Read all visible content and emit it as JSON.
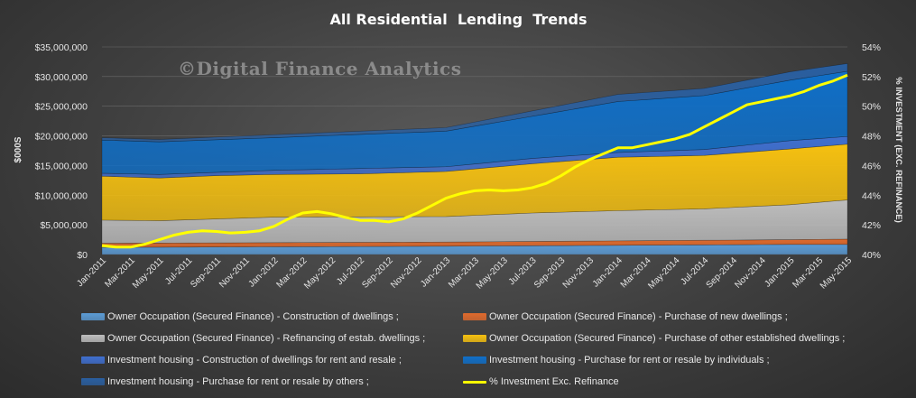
{
  "chart_data": {
    "type": "area",
    "title": "All Residential  Lending  Trends",
    "watermark": "©Digital Finance Analytics",
    "ylabel": "$000S",
    "y2label": "% INVESTMENT (EXC. REFINANCE)",
    "ylim": [
      0,
      35000000
    ],
    "y2lim": [
      40,
      54
    ],
    "yticks": [
      "$0",
      "$5,000,000",
      "$10,000,000",
      "$15,000,000",
      "$20,000,000",
      "$25,000,000",
      "$30,000,000",
      "$35,000,000"
    ],
    "y2ticks": [
      "40%",
      "42%",
      "44%",
      "46%",
      "48%",
      "50%",
      "52%",
      "54%"
    ],
    "x": [
      "Jan-2011",
      "Feb-2011",
      "Mar-2011",
      "Apr-2011",
      "May-2011",
      "Jun-2011",
      "Jul-2011",
      "Aug-2011",
      "Sep-2011",
      "Oct-2011",
      "Nov-2011",
      "Dec-2011",
      "Jan-2012",
      "Feb-2012",
      "Mar-2012",
      "Apr-2012",
      "May-2012",
      "Jun-2012",
      "Jul-2012",
      "Aug-2012",
      "Sep-2012",
      "Oct-2012",
      "Nov-2012",
      "Dec-2012",
      "Jan-2013",
      "Feb-2013",
      "Mar-2013",
      "Apr-2013",
      "May-2013",
      "Jun-2013",
      "Jul-2013",
      "Aug-2013",
      "Sep-2013",
      "Oct-2013",
      "Nov-2013",
      "Dec-2013",
      "Jan-2014",
      "Feb-2014",
      "Mar-2014",
      "Apr-2014",
      "May-2014",
      "Jun-2014",
      "Jul-2014",
      "Aug-2014",
      "Sep-2014",
      "Oct-2014",
      "Nov-2014",
      "Dec-2014",
      "Jan-2015",
      "Feb-2015",
      "Mar-2015",
      "Apr-2015",
      "May-2015"
    ],
    "xtick_labels": [
      "Jan-2011",
      "Mar-2011",
      "May-2011",
      "Jul-2011",
      "Sep-2011",
      "Nov-2011",
      "Jan-2012",
      "Mar-2012",
      "May-2012",
      "Jul-2012",
      "Sep-2012",
      "Nov-2012",
      "Jan-2013",
      "Mar-2013",
      "May-2013",
      "Jul-2013",
      "Sep-2013",
      "Nov-2013",
      "Jan-2014",
      "Mar-2014",
      "May-2014",
      "Jul-2014",
      "Sep-2014",
      "Nov-2014",
      "Jan-2015",
      "Mar-2015",
      "May-2015"
    ],
    "stack_anchors": {
      "cum1_construction": [
        [
          0,
          1200000
        ],
        [
          12,
          1300000
        ],
        [
          24,
          1400000
        ],
        [
          36,
          1550000
        ],
        [
          48,
          1700000
        ],
        [
          52,
          1700000
        ]
      ],
      "cum2_new_dwellings": [
        [
          0,
          1900000
        ],
        [
          12,
          2000000
        ],
        [
          24,
          2100000
        ],
        [
          36,
          2300000
        ],
        [
          48,
          2500000
        ],
        [
          52,
          2600000
        ]
      ],
      "cum3_refinancing": [
        [
          0,
          5800000
        ],
        [
          4,
          5700000
        ],
        [
          12,
          6300000
        ],
        [
          24,
          6400000
        ],
        [
          30,
          7000000
        ],
        [
          36,
          7400000
        ],
        [
          42,
          7700000
        ],
        [
          48,
          8400000
        ],
        [
          52,
          9200000
        ]
      ],
      "cum4_other_established": [
        [
          0,
          13200000
        ],
        [
          4,
          12900000
        ],
        [
          8,
          13300000
        ],
        [
          12,
          13500000
        ],
        [
          18,
          13600000
        ],
        [
          24,
          14000000
        ],
        [
          30,
          15300000
        ],
        [
          36,
          16400000
        ],
        [
          42,
          16700000
        ],
        [
          48,
          17800000
        ],
        [
          52,
          18600000
        ]
      ],
      "cum5_inv_construction": [
        [
          0,
          13700000
        ],
        [
          4,
          13500000
        ],
        [
          12,
          14200000
        ],
        [
          24,
          14800000
        ],
        [
          30,
          16200000
        ],
        [
          36,
          17200000
        ],
        [
          42,
          17700000
        ],
        [
          48,
          19200000
        ],
        [
          52,
          19900000
        ]
      ],
      "cum6_inv_individuals": [
        [
          0,
          19300000
        ],
        [
          4,
          19000000
        ],
        [
          12,
          19700000
        ],
        [
          24,
          20800000
        ],
        [
          30,
          23300000
        ],
        [
          36,
          25800000
        ],
        [
          42,
          26800000
        ],
        [
          48,
          29400000
        ],
        [
          52,
          30900000
        ]
      ],
      "cum7_inv_others": [
        [
          0,
          19700000
        ],
        [
          4,
          19400000
        ],
        [
          12,
          20200000
        ],
        [
          24,
          21400000
        ],
        [
          30,
          24200000
        ],
        [
          36,
          27000000
        ],
        [
          42,
          28000000
        ],
        [
          48,
          30800000
        ],
        [
          52,
          32200000
        ]
      ]
    },
    "investment_pct": [
      [
        0,
        40.6
      ],
      [
        1,
        40.5
      ],
      [
        2,
        40.5
      ],
      [
        3,
        40.7
      ],
      [
        4,
        41.0
      ],
      [
        5,
        41.3
      ],
      [
        6,
        41.5
      ],
      [
        7,
        41.6
      ],
      [
        8,
        41.55
      ],
      [
        9,
        41.45
      ],
      [
        10,
        41.5
      ],
      [
        11,
        41.6
      ],
      [
        12,
        41.9
      ],
      [
        13,
        42.4
      ],
      [
        14,
        42.8
      ],
      [
        15,
        42.9
      ],
      [
        16,
        42.75
      ],
      [
        17,
        42.5
      ],
      [
        18,
        42.3
      ],
      [
        19,
        42.3
      ],
      [
        20,
        42.2
      ],
      [
        21,
        42.4
      ],
      [
        22,
        42.8
      ],
      [
        23,
        43.3
      ],
      [
        24,
        43.8
      ],
      [
        25,
        44.1
      ],
      [
        26,
        44.3
      ],
      [
        27,
        44.35
      ],
      [
        28,
        44.3
      ],
      [
        29,
        44.35
      ],
      [
        30,
        44.5
      ],
      [
        31,
        44.8
      ],
      [
        32,
        45.3
      ],
      [
        33,
        45.9
      ],
      [
        34,
        46.4
      ],
      [
        35,
        46.8
      ],
      [
        36,
        47.2
      ],
      [
        37,
        47.2
      ],
      [
        38,
        47.4
      ],
      [
        39,
        47.6
      ],
      [
        40,
        47.8
      ],
      [
        41,
        48.1
      ],
      [
        42,
        48.6
      ],
      [
        43,
        49.1
      ],
      [
        44,
        49.6
      ],
      [
        45,
        50.1
      ],
      [
        46,
        50.3
      ],
      [
        47,
        50.5
      ],
      [
        48,
        50.7
      ],
      [
        49,
        51.0
      ],
      [
        50,
        51.4
      ],
      [
        51,
        51.7
      ],
      [
        52,
        52.1
      ]
    ],
    "colors": {
      "construction": "#5b9bd5",
      "new_dwellings": "#e06a2c",
      "refinancing": "#bdbdbd",
      "other_established": "#f5c010",
      "inv_construction": "#3f6fcf",
      "inv_individuals": "#0f6fc8",
      "inv_others": "#2a5fa0",
      "investment_pct": "#ffff00"
    },
    "legend": [
      {
        "key": "construction",
        "label": "Owner Occupation (Secured Finance) - Construction of dwellings ;",
        "kind": "area"
      },
      {
        "key": "new_dwellings",
        "label": "Owner Occupation (Secured Finance) - Purchase of new dwellings ;",
        "kind": "area"
      },
      {
        "key": "refinancing",
        "label": "Owner Occupation (Secured Finance) - Refinancing of estab. dwellings ;",
        "kind": "area"
      },
      {
        "key": "other_established",
        "label": "Owner Occupation (Secured Finance) - Purchase of other established dwellings ;",
        "kind": "area"
      },
      {
        "key": "inv_construction",
        "label": "Investment housing - Construction of dwellings for rent and resale ;",
        "kind": "area"
      },
      {
        "key": "inv_individuals",
        "label": "Investment housing - Purchase for rent or resale by individuals ;",
        "kind": "area"
      },
      {
        "key": "inv_others",
        "label": "Investment housing - Purchase for rent or resale by others ;",
        "kind": "area"
      },
      {
        "key": "investment_pct",
        "label": "% Investment Exc. Refinance",
        "kind": "line"
      }
    ]
  }
}
